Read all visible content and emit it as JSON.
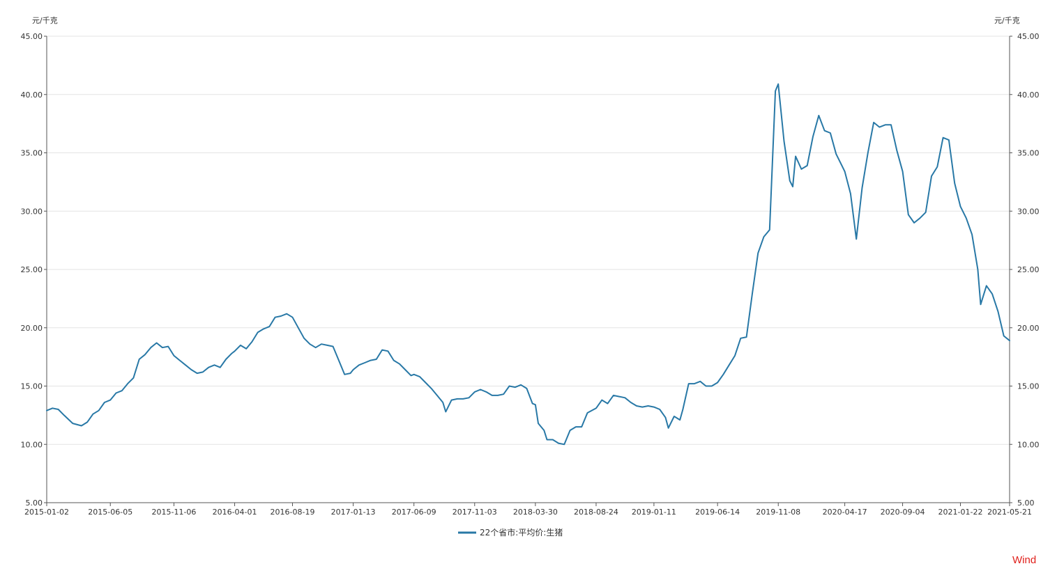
{
  "chart_data": {
    "type": "line",
    "left_axis_unit": "元/千克",
    "right_axis_unit": "元/千克",
    "y_ticks": [
      "5.00",
      "10.00",
      "15.00",
      "20.00",
      "25.00",
      "30.00",
      "35.00",
      "40.00",
      "45.00"
    ],
    "ylim": [
      5,
      45
    ],
    "x_tick_labels": [
      "2015-01-02",
      "2015-06-05",
      "2015-11-06",
      "2016-04-01",
      "2016-08-19",
      "2017-01-13",
      "2017-06-09",
      "2017-11-03",
      "2018-03-30",
      "2018-08-24",
      "2019-01-11",
      "2019-06-14",
      "2019-11-08",
      "2020-04-17",
      "2020-09-04",
      "2021-01-22",
      "2021-05-21"
    ],
    "x_range": [
      "2015-01-02",
      "2021-05-21"
    ],
    "grid": "horizontal",
    "legend_position": "bottom-center",
    "colors": {
      "series": "#2878a6",
      "axis": "#555555",
      "grid": "#e3e3e3",
      "watermark": "#e0201b"
    },
    "series": [
      {
        "name": "22个省市:平均价:生猪",
        "points": [
          [
            "2015-01-02",
            12.9
          ],
          [
            "2015-01-16",
            13.1
          ],
          [
            "2015-01-30",
            13.0
          ],
          [
            "2015-02-13",
            12.5
          ],
          [
            "2015-03-06",
            11.8
          ],
          [
            "2015-03-27",
            11.6
          ],
          [
            "2015-04-10",
            11.9
          ],
          [
            "2015-04-24",
            12.6
          ],
          [
            "2015-05-08",
            12.9
          ],
          [
            "2015-05-22",
            13.6
          ],
          [
            "2015-06-05",
            13.8
          ],
          [
            "2015-06-19",
            14.4
          ],
          [
            "2015-07-03",
            14.6
          ],
          [
            "2015-07-17",
            15.2
          ],
          [
            "2015-07-31",
            15.7
          ],
          [
            "2015-08-14",
            17.3
          ],
          [
            "2015-08-28",
            17.7
          ],
          [
            "2015-09-11",
            18.3
          ],
          [
            "2015-09-25",
            18.7
          ],
          [
            "2015-10-09",
            18.3
          ],
          [
            "2015-10-23",
            18.4
          ],
          [
            "2015-11-06",
            17.6
          ],
          [
            "2015-11-20",
            17.2
          ],
          [
            "2015-12-04",
            16.8
          ],
          [
            "2015-12-18",
            16.4
          ],
          [
            "2016-01-01",
            16.1
          ],
          [
            "2016-01-15",
            16.2
          ],
          [
            "2016-01-29",
            16.6
          ],
          [
            "2016-02-12",
            16.8
          ],
          [
            "2016-02-26",
            16.6
          ],
          [
            "2016-03-11",
            17.3
          ],
          [
            "2016-03-25",
            17.8
          ],
          [
            "2016-04-01",
            18.0
          ],
          [
            "2016-04-15",
            18.5
          ],
          [
            "2016-04-29",
            18.2
          ],
          [
            "2016-05-13",
            18.8
          ],
          [
            "2016-05-27",
            19.6
          ],
          [
            "2016-06-10",
            19.9
          ],
          [
            "2016-06-24",
            20.1
          ],
          [
            "2016-07-08",
            20.9
          ],
          [
            "2016-07-22",
            21.0
          ],
          [
            "2016-08-05",
            21.2
          ],
          [
            "2016-08-19",
            20.9
          ],
          [
            "2016-09-02",
            20.0
          ],
          [
            "2016-09-16",
            19.1
          ],
          [
            "2016-09-30",
            18.6
          ],
          [
            "2016-10-14",
            18.3
          ],
          [
            "2016-10-28",
            18.6
          ],
          [
            "2016-11-11",
            18.5
          ],
          [
            "2016-11-25",
            18.4
          ],
          [
            "2016-12-09",
            17.2
          ],
          [
            "2016-12-23",
            16.0
          ],
          [
            "2017-01-06",
            16.1
          ],
          [
            "2017-01-13",
            16.4
          ],
          [
            "2017-01-27",
            16.8
          ],
          [
            "2017-02-10",
            17.0
          ],
          [
            "2017-02-24",
            17.2
          ],
          [
            "2017-03-10",
            17.3
          ],
          [
            "2017-03-24",
            18.1
          ],
          [
            "2017-04-07",
            18.0
          ],
          [
            "2017-04-21",
            17.2
          ],
          [
            "2017-05-05",
            16.9
          ],
          [
            "2017-05-19",
            16.4
          ],
          [
            "2017-06-02",
            15.9
          ],
          [
            "2017-06-09",
            16.0
          ],
          [
            "2017-06-23",
            15.8
          ],
          [
            "2017-07-07",
            15.3
          ],
          [
            "2017-07-21",
            14.8
          ],
          [
            "2017-08-04",
            14.2
          ],
          [
            "2017-08-18",
            13.6
          ],
          [
            "2017-08-25",
            12.8
          ],
          [
            "2017-09-08",
            13.8
          ],
          [
            "2017-09-22",
            13.9
          ],
          [
            "2017-10-06",
            13.9
          ],
          [
            "2017-10-20",
            14.0
          ],
          [
            "2017-11-03",
            14.5
          ],
          [
            "2017-11-17",
            14.7
          ],
          [
            "2017-12-01",
            14.5
          ],
          [
            "2017-12-15",
            14.2
          ],
          [
            "2017-12-29",
            14.2
          ],
          [
            "2018-01-12",
            14.3
          ],
          [
            "2018-01-26",
            15.0
          ],
          [
            "2018-02-09",
            14.9
          ],
          [
            "2018-02-23",
            15.1
          ],
          [
            "2018-03-09",
            14.8
          ],
          [
            "2018-03-23",
            13.5
          ],
          [
            "2018-03-30",
            13.4
          ],
          [
            "2018-04-06",
            11.8
          ],
          [
            "2018-04-20",
            11.2
          ],
          [
            "2018-04-27",
            10.4
          ],
          [
            "2018-05-11",
            10.4
          ],
          [
            "2018-05-25",
            10.1
          ],
          [
            "2018-06-08",
            10.0
          ],
          [
            "2018-06-22",
            11.2
          ],
          [
            "2018-07-06",
            11.5
          ],
          [
            "2018-07-20",
            11.5
          ],
          [
            "2018-08-03",
            12.7
          ],
          [
            "2018-08-24",
            13.1
          ],
          [
            "2018-09-07",
            13.8
          ],
          [
            "2018-09-21",
            13.5
          ],
          [
            "2018-10-05",
            14.2
          ],
          [
            "2018-10-19",
            14.1
          ],
          [
            "2018-11-02",
            14.0
          ],
          [
            "2018-11-16",
            13.6
          ],
          [
            "2018-11-30",
            13.3
          ],
          [
            "2018-12-14",
            13.2
          ],
          [
            "2018-12-28",
            13.3
          ],
          [
            "2019-01-11",
            13.2
          ],
          [
            "2019-01-25",
            13.0
          ],
          [
            "2019-02-08",
            12.3
          ],
          [
            "2019-02-15",
            11.4
          ],
          [
            "2019-03-01",
            12.4
          ],
          [
            "2019-03-15",
            12.1
          ],
          [
            "2019-03-22",
            13.0
          ],
          [
            "2019-04-05",
            15.2
          ],
          [
            "2019-04-19",
            15.2
          ],
          [
            "2019-05-03",
            15.4
          ],
          [
            "2019-05-17",
            15.0
          ],
          [
            "2019-05-31",
            15.0
          ],
          [
            "2019-06-14",
            15.3
          ],
          [
            "2019-06-28",
            16.0
          ],
          [
            "2019-07-12",
            16.8
          ],
          [
            "2019-07-26",
            17.6
          ],
          [
            "2019-08-09",
            19.1
          ],
          [
            "2019-08-23",
            19.2
          ],
          [
            "2019-09-06",
            22.9
          ],
          [
            "2019-09-20",
            26.4
          ],
          [
            "2019-10-04",
            27.8
          ],
          [
            "2019-10-18",
            28.4
          ],
          [
            "2019-11-01",
            40.3
          ],
          [
            "2019-11-08",
            40.9
          ],
          [
            "2019-11-22",
            36.0
          ],
          [
            "2019-12-06",
            32.6
          ],
          [
            "2019-12-13",
            32.1
          ],
          [
            "2019-12-20",
            34.7
          ],
          [
            "2020-01-03",
            33.6
          ],
          [
            "2020-01-17",
            33.9
          ],
          [
            "2020-01-31",
            36.4
          ],
          [
            "2020-02-14",
            38.2
          ],
          [
            "2020-02-28",
            36.9
          ],
          [
            "2020-03-13",
            36.7
          ],
          [
            "2020-03-27",
            34.9
          ],
          [
            "2020-04-10",
            33.9
          ],
          [
            "2020-04-17",
            33.4
          ],
          [
            "2020-05-01",
            31.5
          ],
          [
            "2020-05-15",
            27.6
          ],
          [
            "2020-05-29",
            32.0
          ],
          [
            "2020-06-12",
            35.0
          ],
          [
            "2020-06-26",
            37.6
          ],
          [
            "2020-07-10",
            37.2
          ],
          [
            "2020-07-24",
            37.4
          ],
          [
            "2020-08-07",
            37.4
          ],
          [
            "2020-08-21",
            35.2
          ],
          [
            "2020-09-04",
            33.4
          ],
          [
            "2020-09-18",
            29.7
          ],
          [
            "2020-10-02",
            29.0
          ],
          [
            "2020-10-16",
            29.4
          ],
          [
            "2020-10-30",
            29.9
          ],
          [
            "2020-11-13",
            33.0
          ],
          [
            "2020-11-27",
            33.8
          ],
          [
            "2020-12-11",
            36.3
          ],
          [
            "2020-12-25",
            36.1
          ],
          [
            "2021-01-08",
            32.4
          ],
          [
            "2021-01-22",
            30.4
          ],
          [
            "2021-02-05",
            29.4
          ],
          [
            "2021-02-19",
            28.0
          ],
          [
            "2021-03-05",
            25.0
          ],
          [
            "2021-03-12",
            22.0
          ],
          [
            "2021-03-26",
            23.6
          ],
          [
            "2021-04-09",
            22.9
          ],
          [
            "2021-04-23",
            21.4
          ],
          [
            "2021-05-07",
            19.3
          ],
          [
            "2021-05-21",
            18.9
          ]
        ]
      }
    ]
  },
  "watermark": "Wind"
}
